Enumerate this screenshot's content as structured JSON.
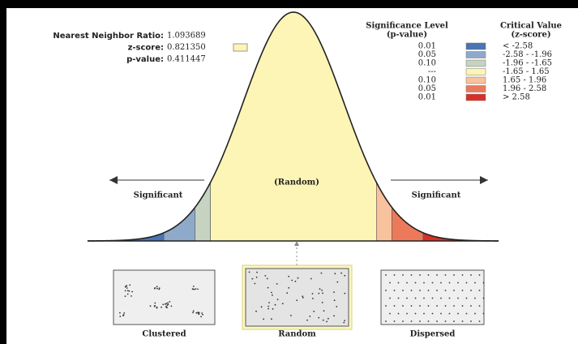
{
  "stats": [
    {
      "label": "Nearest Neighbor Ratio:",
      "value": "1.093689"
    },
    {
      "label": "z-score:",
      "value": "0.821350"
    },
    {
      "label": "p-value:",
      "value": "0.411447"
    }
  ],
  "legend": {
    "headers": [
      [
        "Significance Level",
        "(p-value)"
      ],
      [
        "Critical Value",
        "(z-score)"
      ]
    ],
    "rows": [
      {
        "p": "0.01",
        "z": "< -2.58",
        "color": "#4a74b4"
      },
      {
        "p": "0.05",
        "z": "-2.58 - -1.96",
        "color": "#8ea9c9"
      },
      {
        "p": "0.10",
        "z": "-1.96 - -1.65",
        "color": "#c5d3c0"
      },
      {
        "p": "---",
        "z": "-1.65 - 1.65",
        "color": "#fdf5b5"
      },
      {
        "p": "0.10",
        "z": "1.65 - 1.96",
        "color": "#f9c29c"
      },
      {
        "p": "0.05",
        "z": "1.96 - 2.58",
        "color": "#ec7a5a"
      },
      {
        "p": "0.01",
        "z": "> 2.58",
        "color": "#d73027"
      }
    ]
  },
  "curve_labels": {
    "left": "Significant",
    "center": "(Random)",
    "right": "Significant"
  },
  "patterns": [
    "Clustered",
    "Random",
    "Dispersed"
  ]
}
